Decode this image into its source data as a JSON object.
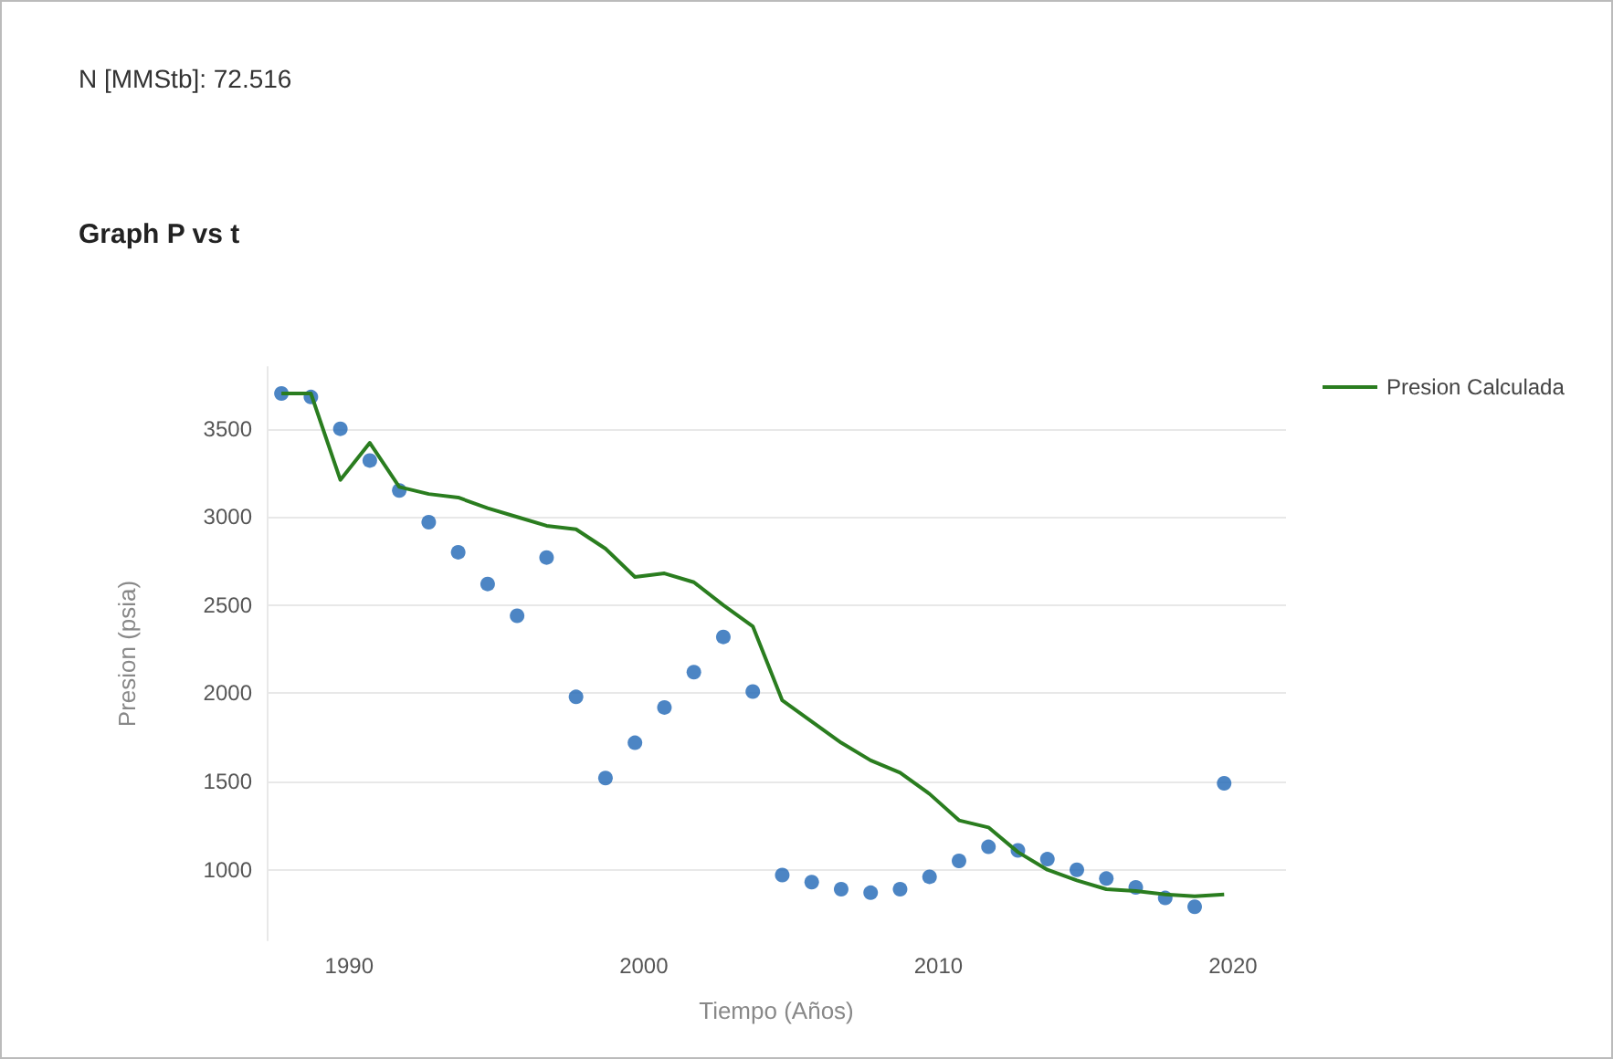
{
  "chart_data": {
    "type": "line",
    "title": "Graph P vs t",
    "annotations": [
      "N [MMStb]: 72.516"
    ],
    "xlabel": "Tiempo (Años)",
    "ylabel": "Presion (psia)",
    "x": [
      1987.7,
      1988.7,
      1989.7,
      1990.7,
      1991.7,
      1992.7,
      1993.7,
      1994.7,
      1995.7,
      1996.7,
      1997.7,
      1998.7,
      1999.7,
      2000.7,
      2001.7,
      2002.7,
      2003.7,
      2004.7,
      2005.7,
      2006.7,
      2007.7,
      2008.7,
      2009.7,
      2010.7,
      2011.7,
      2012.7,
      2013.7,
      2014.7,
      2015.7,
      2016.7,
      2017.7,
      2018.7,
      2019.7
    ],
    "series": [
      {
        "type": "scatter",
        "color": "#1f67b5",
        "marker": "circle",
        "values": [
          3700,
          3680,
          3500,
          3320,
          3150,
          2970,
          2800,
          2620,
          2440,
          2770,
          1980,
          1520,
          1720,
          1920,
          2120,
          2320,
          2010,
          970,
          930,
          890,
          870,
          890,
          960,
          1050,
          1130,
          1110,
          1060,
          1000,
          950,
          900,
          840,
          790,
          1490
        ]
      },
      {
        "type": "line",
        "name": "Presion Calculada",
        "color": "#2a7d1f",
        "values": [
          3700,
          3700,
          3210,
          3420,
          3170,
          3130,
          3110,
          3050,
          3000,
          2950,
          2930,
          2820,
          2660,
          2680,
          2630,
          2500,
          2380,
          1960,
          1840,
          1720,
          1620,
          1550,
          1430,
          1280,
          1240,
          1100,
          1000,
          940,
          890,
          880,
          860,
          850,
          860
        ]
      }
    ],
    "xlim": [
      1987.2,
      2021.8
    ],
    "xticks": [
      1990,
      2000,
      2010,
      2020
    ],
    "ylim": [
      600,
      3850
    ],
    "yticks": [
      1000,
      1500,
      2000,
      2500,
      3000,
      3500
    ],
    "grid": "y",
    "legend": "top right",
    "line_style": "solid"
  }
}
